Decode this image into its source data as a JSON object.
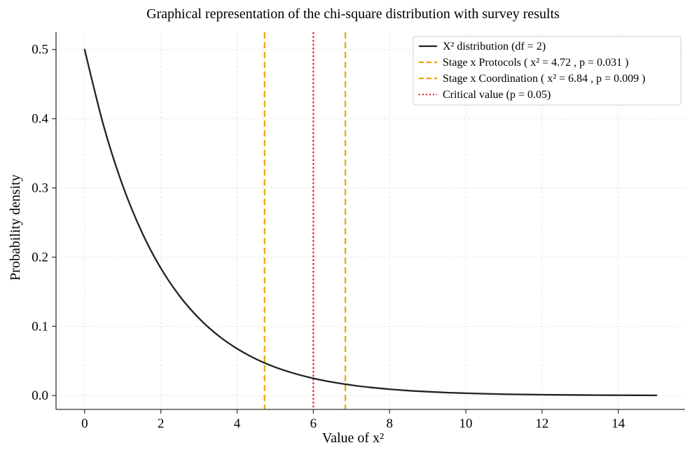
{
  "chart_data": {
    "type": "line",
    "title": "Graphical representation of the chi-square distribution with survey results",
    "xlabel": "Value of x²",
    "ylabel": "Probability density",
    "xlim": [
      -0.75,
      15.75
    ],
    "ylim": [
      -0.02,
      0.525
    ],
    "xticks": [
      0,
      2,
      4,
      6,
      8,
      10,
      12,
      14
    ],
    "xtick_labels": [
      "0",
      "2",
      "4",
      "6",
      "8",
      "10",
      "12",
      "14"
    ],
    "yticks": [
      0.0,
      0.1,
      0.2,
      0.3,
      0.4,
      0.5
    ],
    "ytick_labels": [
      "0.0",
      "0.1",
      "0.2",
      "0.3",
      "0.4",
      "0.5"
    ],
    "grid": true,
    "legend_position": "top-right",
    "series": [
      {
        "name": "X² distribution (df = 2)",
        "kind": "curve",
        "color": "#222222",
        "line_style": "solid",
        "x": [
          0,
          0.5,
          1,
          1.5,
          2,
          2.5,
          3,
          3.5,
          4,
          4.5,
          5,
          5.5,
          6,
          6.5,
          7,
          7.5,
          8,
          8.5,
          9,
          9.5,
          10,
          10.5,
          11,
          11.5,
          12,
          12.5,
          13,
          13.5,
          14,
          14.5,
          15
        ],
        "y": [
          0.5,
          0.3894,
          0.3033,
          0.2362,
          0.1839,
          0.1433,
          0.1116,
          0.0869,
          0.0677,
          0.0527,
          0.041,
          0.032,
          0.0249,
          0.0194,
          0.0151,
          0.0118,
          0.0092,
          0.0071,
          0.0056,
          0.0043,
          0.0034,
          0.0026,
          0.002,
          0.0016,
          0.0012,
          0.001,
          0.0008,
          0.0006,
          0.0005,
          0.0004,
          0.0003
        ]
      },
      {
        "name": "Stage x Protocols ( x² = 4.72 , p = 0.031 )",
        "kind": "vline",
        "color": "#f0a202",
        "line_style": "dashed",
        "x": 4.72
      },
      {
        "name": "Stage x Coordination ( x² = 6.84 , p = 0.009 )",
        "kind": "vline",
        "color": "#f0a202",
        "line_style": "dashed",
        "x": 6.84
      },
      {
        "name": "Critical value (p = 0.05)",
        "kind": "vline",
        "color": "#ff0000",
        "line_style": "dotted",
        "x": 6.0
      }
    ]
  }
}
